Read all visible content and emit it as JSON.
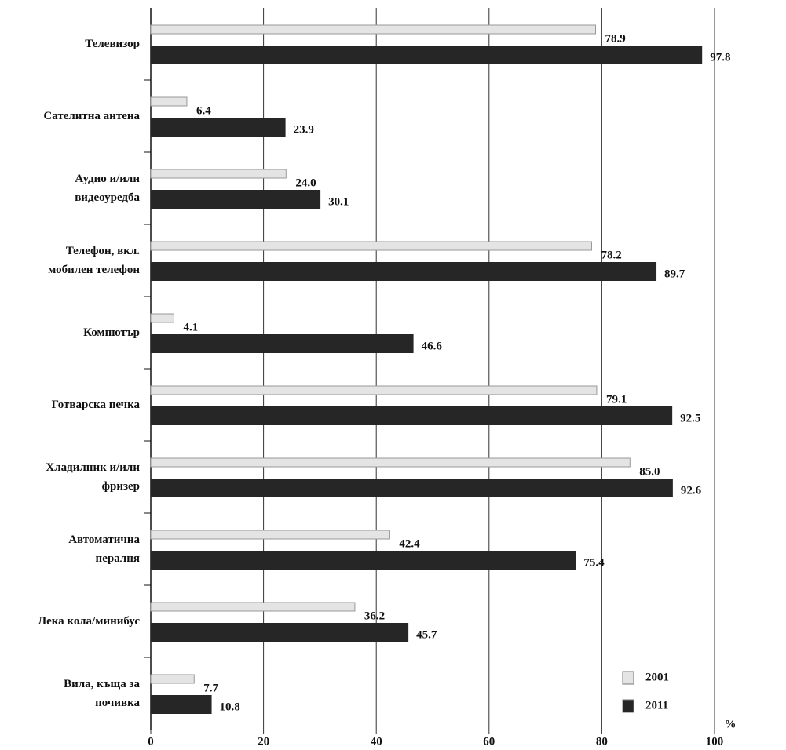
{
  "chart_data": {
    "type": "hbar",
    "categories": [
      "Телевизор",
      "Сателитна антена",
      "Аудио и/или\nвидеоуредба",
      "Телефон, вкл.\nмобилен телефон",
      "Компютър",
      "Готварска печка",
      "Хладилник и/или\nфризер",
      "Автоматична\nпералня",
      "Лека кола/минибус",
      "Вила, къща за\nпочивка"
    ],
    "series": [
      {
        "name": "2001",
        "color": "#e4e4e4",
        "values": [
          78.9,
          6.4,
          24.0,
          78.2,
          4.1,
          79.1,
          85.0,
          42.4,
          36.2,
          7.7
        ],
        "value_labels": [
          "78.9",
          "6.4",
          "24.0",
          "78.2",
          "4.1",
          "79.1",
          "85.0",
          "42.4",
          "36.2",
          "7.7"
        ]
      },
      {
        "name": "2011",
        "color": "#262626",
        "values": [
          97.8,
          23.9,
          30.1,
          89.7,
          46.6,
          92.5,
          92.6,
          75.4,
          45.7,
          10.8
        ],
        "value_labels": [
          "97.8",
          "23.9",
          "30.1",
          "89.7",
          "46.6",
          "92.5",
          "92.6",
          "75.4",
          "45.7",
          "10.8"
        ]
      }
    ],
    "xlim": [
      0,
      100
    ],
    "xticks": [
      0,
      20,
      40,
      60,
      80,
      100
    ],
    "x_unit": "%",
    "grid": true
  }
}
